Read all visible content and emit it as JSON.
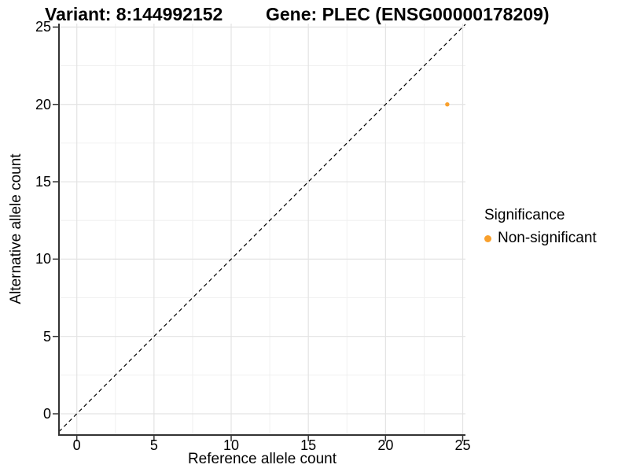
{
  "header": {
    "variant_title": "Variant: 8:144992152",
    "gene_title": "Gene: PLEC (ENSG00000178209)"
  },
  "chart_data": {
    "type": "scatter",
    "title": "Variant: 8:144992152 | Gene: PLEC (ENSG00000178209)",
    "xlabel": "Reference allele count",
    "ylabel": "Alternative allele count",
    "xlim": [
      -1.2,
      26.2
    ],
    "ylim": [
      -1.4,
      25.2
    ],
    "x_ticks": [
      0,
      5,
      10,
      15,
      20,
      25
    ],
    "y_ticks": [
      0,
      5,
      10,
      15,
      20,
      25
    ],
    "x_minor_ticks": [
      2.5,
      7.5,
      12.5,
      17.5,
      22.5
    ],
    "y_minor_ticks": [
      2.5,
      7.5,
      12.5,
      17.5,
      22.5
    ],
    "grid": true,
    "legend_position": "right",
    "series": [
      {
        "name": "Non-significant",
        "color": "#F9A02C",
        "points": [
          {
            "x": 24,
            "y": 20
          }
        ]
      }
    ],
    "reference_line": {
      "slope": 1,
      "intercept": 0,
      "linetype": "dashed",
      "color": "#000000"
    },
    "legend": {
      "title": "Significance",
      "entries": [
        {
          "label": "Non-significant",
          "color": "#F9A02C"
        }
      ]
    },
    "colors": {
      "major_grid": "#E3E3E3",
      "minor_grid": "#F0F0F0",
      "axis_line": "#333333",
      "background": "#FFFFFF"
    }
  }
}
